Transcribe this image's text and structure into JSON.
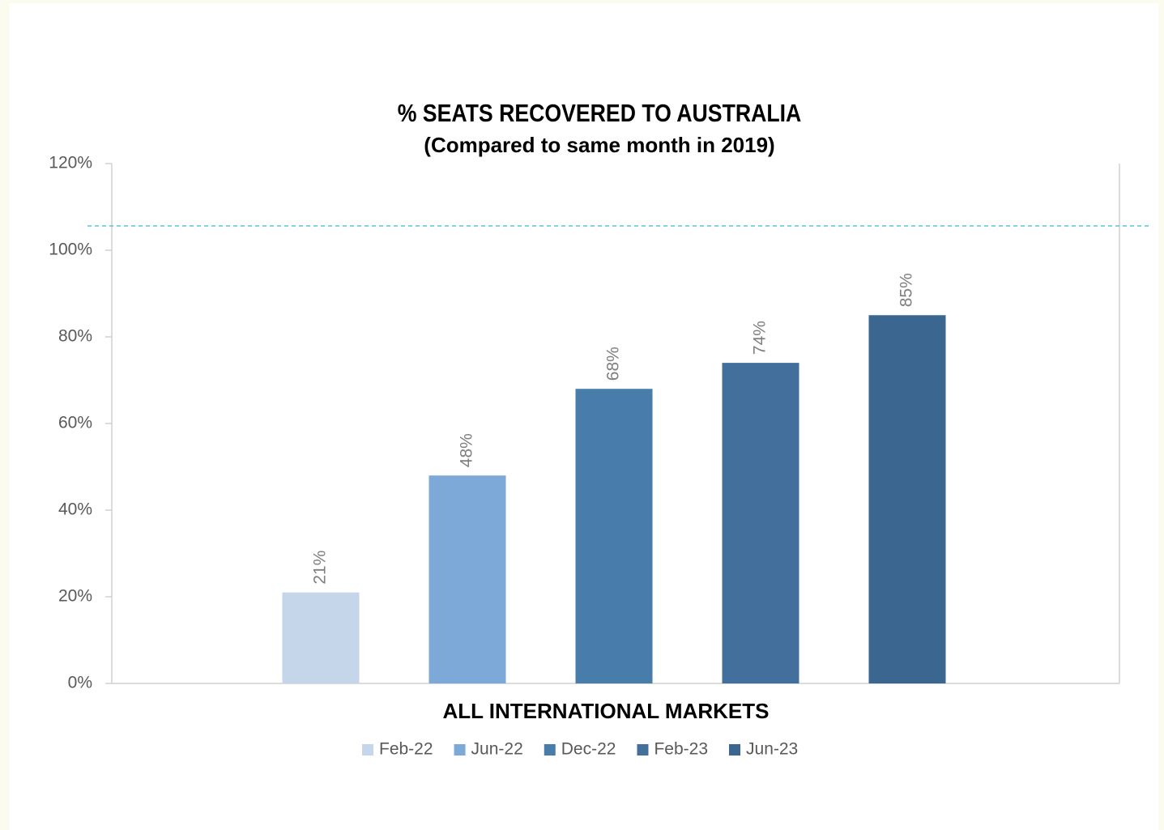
{
  "chart_data": {
    "type": "bar",
    "title": "% SEATS RECOVERED TO AUSTRALIA",
    "subtitle": "(Compared to same month in 2019)",
    "categories": [
      "ALL INTERNATIONAL MARKETS"
    ],
    "series": [
      {
        "name": "Feb-22",
        "color": "#c5d5ea",
        "values": [
          21
        ],
        "value_labels": [
          "21%"
        ]
      },
      {
        "name": "Jun-22",
        "color": "#7da9d8",
        "values": [
          48
        ],
        "value_labels": [
          "48%"
        ]
      },
      {
        "name": "Dec-22",
        "color": "#477cab",
        "values": [
          68
        ],
        "value_labels": [
          "68%"
        ]
      },
      {
        "name": "Feb-23",
        "color": "#426f9c",
        "values": [
          74
        ],
        "value_labels": [
          "74%"
        ]
      },
      {
        "name": "Jun-23",
        "color": "#3a6690",
        "values": [
          85
        ],
        "value_labels": [
          "85%"
        ]
      }
    ],
    "ylim": [
      0,
      120
    ],
    "yticks": [
      {
        "value": 0,
        "label": "0%"
      },
      {
        "value": 20,
        "label": "20%"
      },
      {
        "value": 40,
        "label": "40%"
      },
      {
        "value": 60,
        "label": "60%"
      },
      {
        "value": 80,
        "label": "80%"
      },
      {
        "value": 100,
        "label": "100%"
      },
      {
        "value": 120,
        "label": "120%"
      }
    ],
    "reference_line": {
      "value": 105.6,
      "color": "#5bc0de"
    },
    "legend": "bottom"
  }
}
